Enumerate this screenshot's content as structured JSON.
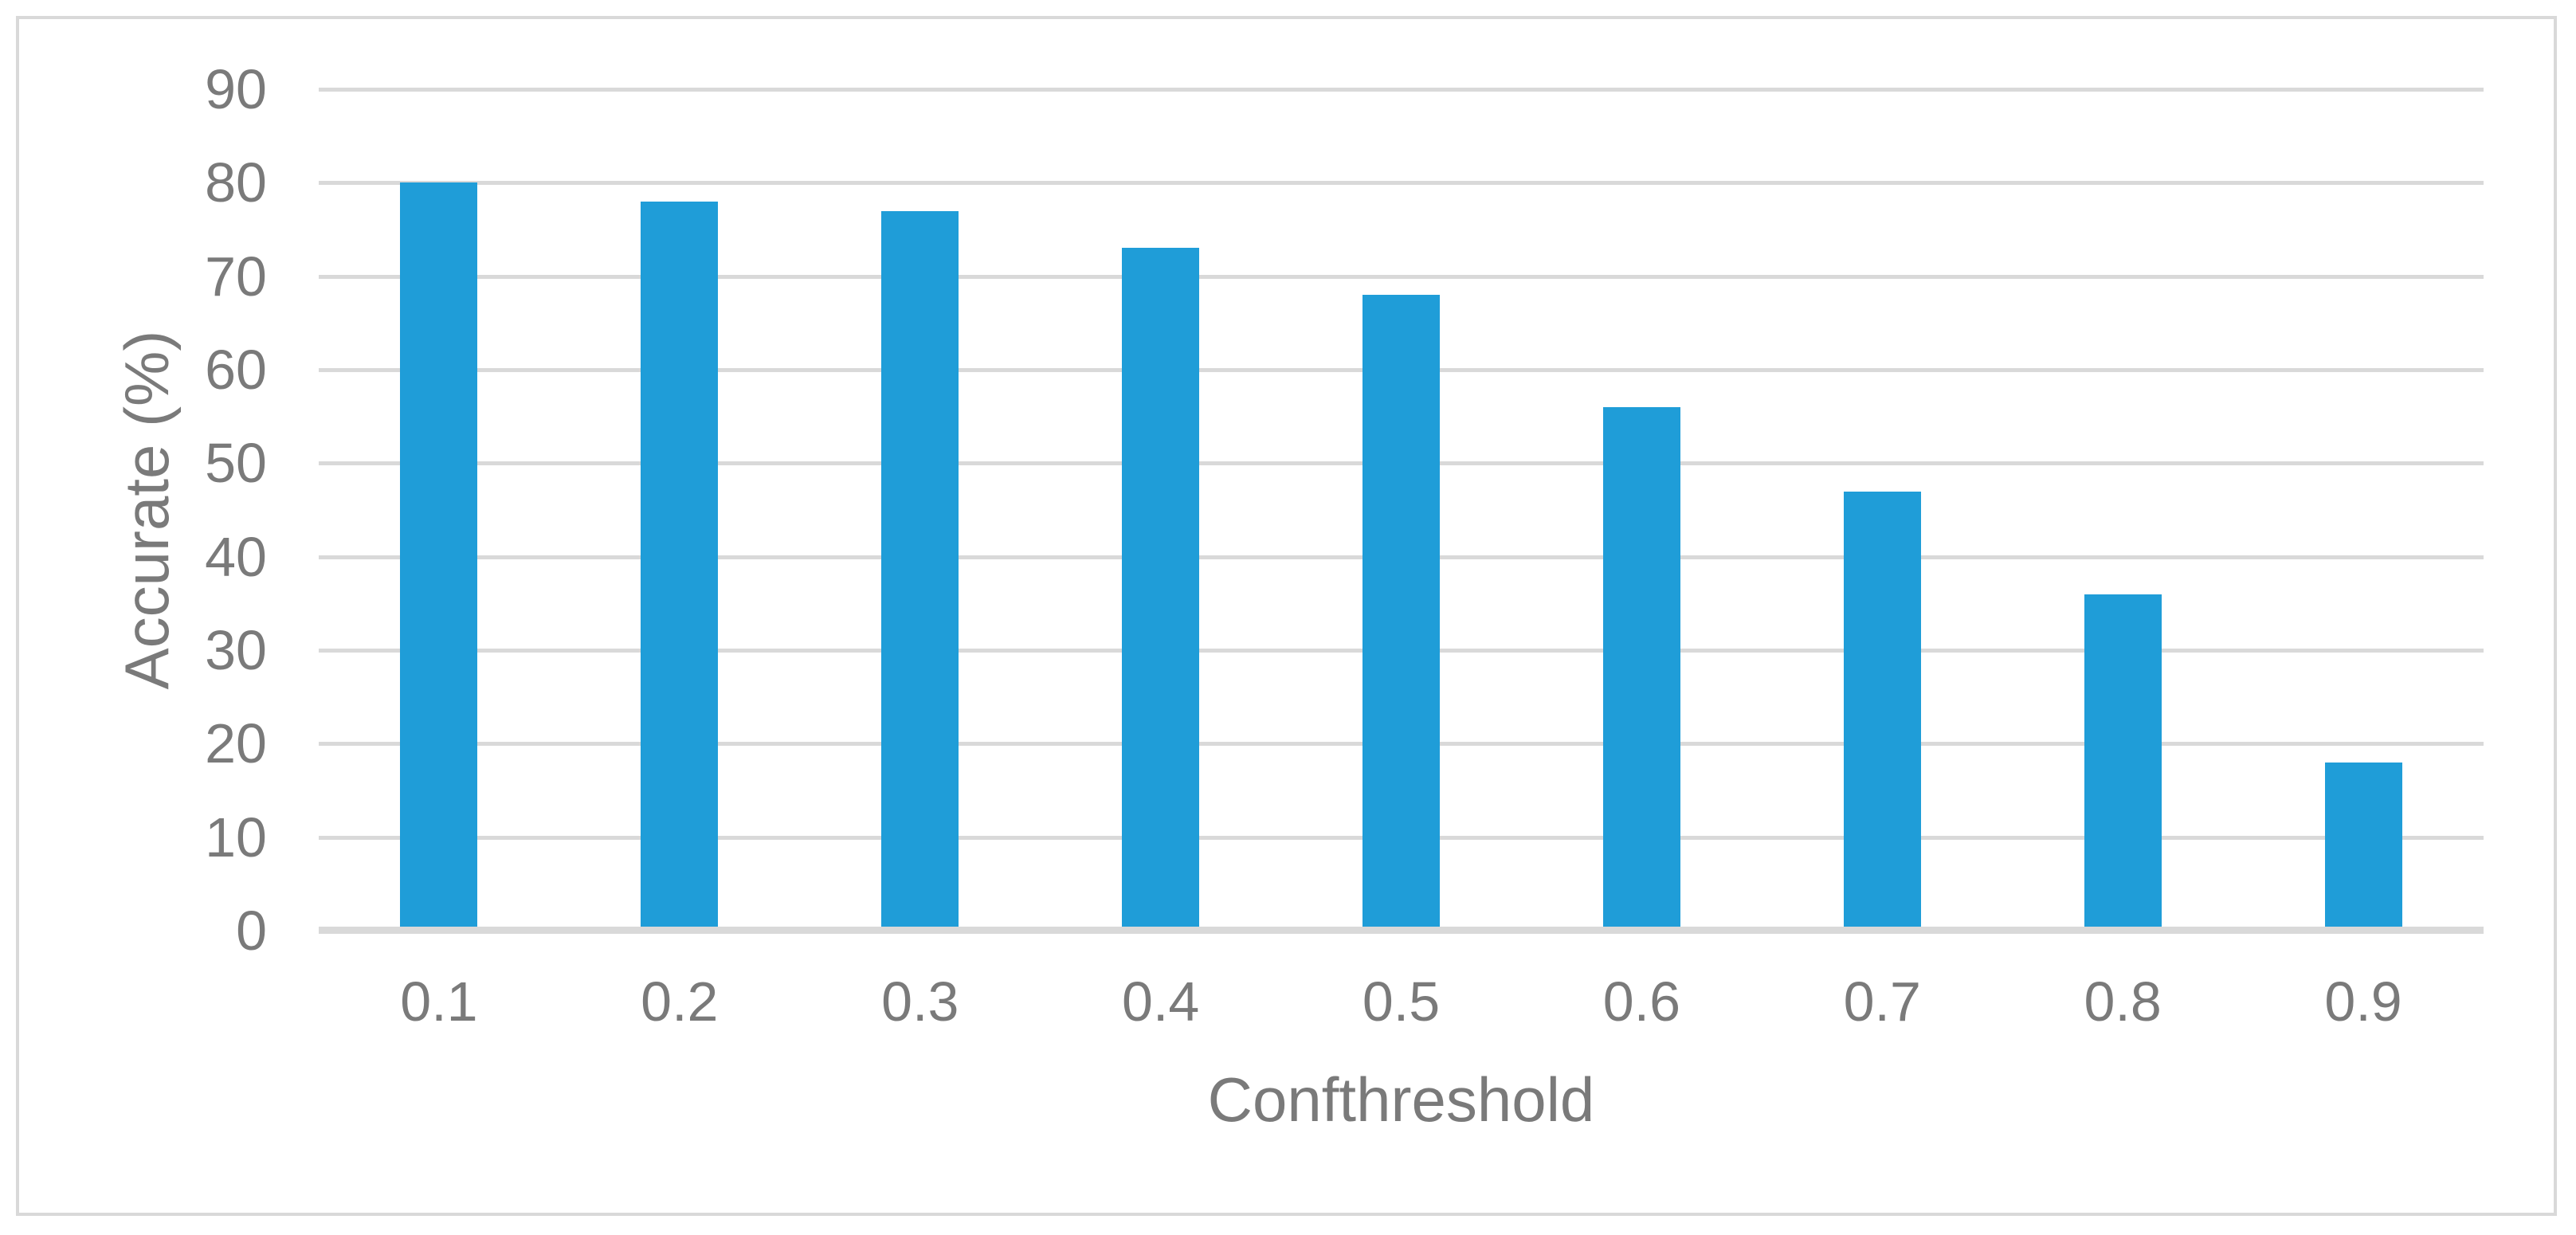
{
  "chart_data": {
    "type": "bar",
    "title": "",
    "categories": [
      "0.1",
      "0.2",
      "0.3",
      "0.4",
      "0.5",
      "0.6",
      "0.7",
      "0.8",
      "0.9"
    ],
    "values": [
      80,
      78,
      77,
      73,
      68,
      56,
      47,
      36,
      18
    ],
    "xlabel": "Confthreshold",
    "ylabel": "Accurate (%)",
    "ylim": [
      0,
      90
    ],
    "yticks": [
      "0",
      "10",
      "20",
      "30",
      "40",
      "50",
      "60",
      "70",
      "80",
      "90"
    ],
    "grid": true,
    "legend_position": "none",
    "colors": {
      "bar": "#1f9dd8",
      "gridline": "#d9d9d9",
      "axis_line": "#d9d9d9",
      "frame_border": "#d9d9d9",
      "tick_label": "#7a7a7a",
      "axis_title": "#7a7a7a",
      "background": "#ffffff"
    }
  }
}
